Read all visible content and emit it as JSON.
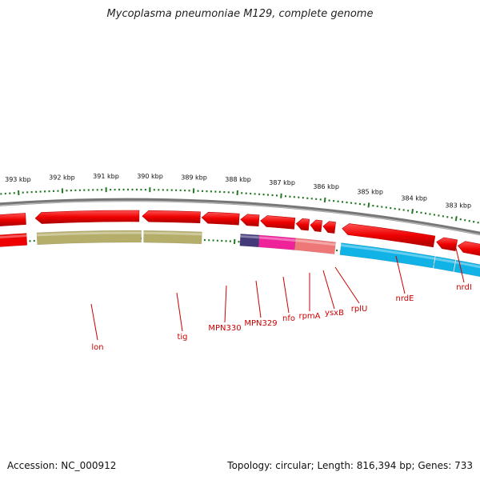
{
  "title": "Mycoplasma pneumoniae M129, complete genome",
  "footer": {
    "accession": "Accession: NC_000912",
    "summary": "Topology: circular; Length: 816,394 bp; Genes: 733"
  },
  "scale": {
    "labels": [
      "393 kbp",
      "392 kbp",
      "391 kbp",
      "390 kbp",
      "389 kbp",
      "388 kbp",
      "387 kbp",
      "386 kbp",
      "385 kbp",
      "384 kbp",
      "383 kbp"
    ]
  },
  "genes": [
    "lon",
    "tig",
    "MPN330",
    "MPN329",
    "nfo",
    "rpmA",
    "ysxB",
    "rplU",
    "nrdE",
    "nrdI"
  ],
  "colors": {
    "backbone": "#888888",
    "cds": "#ee0000",
    "tick": "#227722",
    "label": "#cc0000",
    "olive": "#b5ad6a",
    "navy": "#443a7a",
    "magenta": "#ee2299",
    "salmon": "#ee7777",
    "cyan": "#11b3e6"
  }
}
